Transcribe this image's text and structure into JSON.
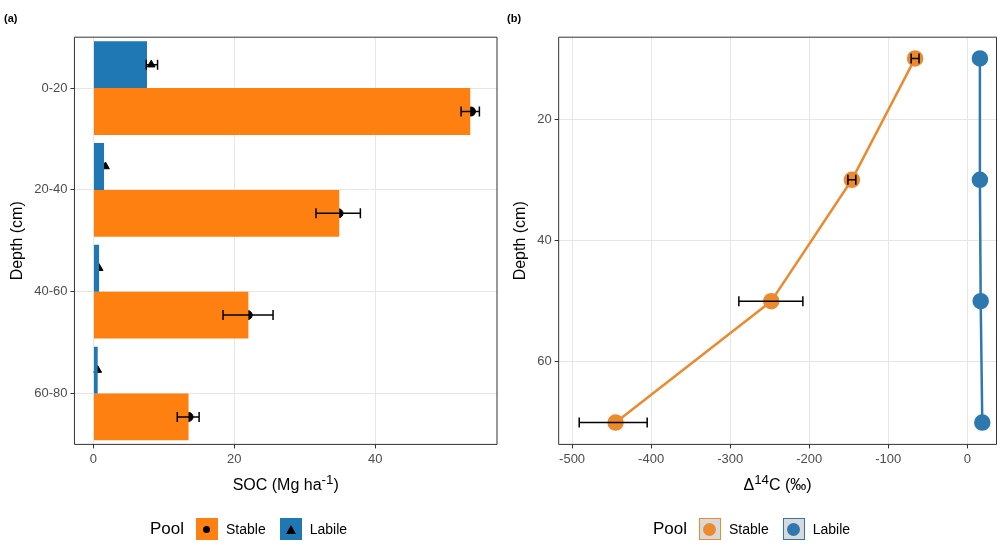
{
  "chart_data": [
    {
      "type": "bar",
      "title": "(a)",
      "orientation": "horizontal",
      "xlabel": "SOC (Mg ha$^{-1}$)",
      "ylabel": "Depth (cm)",
      "legend_title": "Pool",
      "legend": "bottom",
      "grid": true,
      "categories": [
        "0-20",
        "20-40",
        "40-60",
        "60-80"
      ],
      "xlim": [
        -2.7,
        57.3
      ],
      "xticks": [
        0,
        20,
        40
      ],
      "series": [
        {
          "name": "Stable",
          "color": "#fd8010",
          "values": [
            53.5,
            34.9,
            22.0,
            13.5
          ]
        },
        {
          "name": "Labile",
          "color": "#1f77b4",
          "values": [
            7.6,
            1.5,
            0.8,
            0.6
          ]
        },
        {
          "type": "scatter",
          "color": "#000000",
          "marker": "circle",
          "x": [
            "0-20",
            "20-40",
            "40-60",
            "60-80"
          ],
          "values": [
            53.6,
            34.8,
            21.9,
            13.5
          ],
          "errors": [
            [
              52.2,
              54.8
            ],
            [
              31.6,
              37.9
            ],
            [
              18.4,
              25.5
            ],
            [
              11.9,
              15.0
            ]
          ]
        },
        {
          "type": "scatter",
          "color": "#000000",
          "marker": "triangle",
          "x": [
            "0-20",
            "20-40",
            "40-60",
            "60-80"
          ],
          "values": [
            8.2,
            1.7,
            0.8,
            0.6
          ],
          "errors": [
            [
              7.5,
              9.1
            ],
            null,
            null,
            null
          ]
        }
      ]
    },
    {
      "type": "line",
      "title": "(b)",
      "xlabel": "Δ$^{14}$C (‰)",
      "ylabel": "Depth (cm)",
      "legend_title": "Pool",
      "legend": "bottom",
      "grid": true,
      "xlim": [
        -517,
        37
      ],
      "xticks": [
        -500,
        -400,
        -300,
        -200,
        -100,
        0
      ],
      "ylim": [
        73.6,
        6.5
      ],
      "yticks": [
        20,
        40,
        60
      ],
      "series": [
        {
          "name": "Stable",
          "color": "#ec8a30",
          "marker": "circle",
          "x": [
            -66,
            -146,
            -248,
            -445
          ],
          "values": [
            10,
            30,
            50,
            70
          ],
          "xerrors": [
            5,
            5,
            [
              -289,
              -208
            ],
            [
              -491,
              -405
            ]
          ]
        },
        {
          "name": "Labile",
          "color": "#2e78b0",
          "marker": "circle",
          "x": [
            16,
            16,
            17,
            19
          ],
          "values": [
            10,
            30,
            50,
            70
          ]
        }
      ]
    }
  ]
}
